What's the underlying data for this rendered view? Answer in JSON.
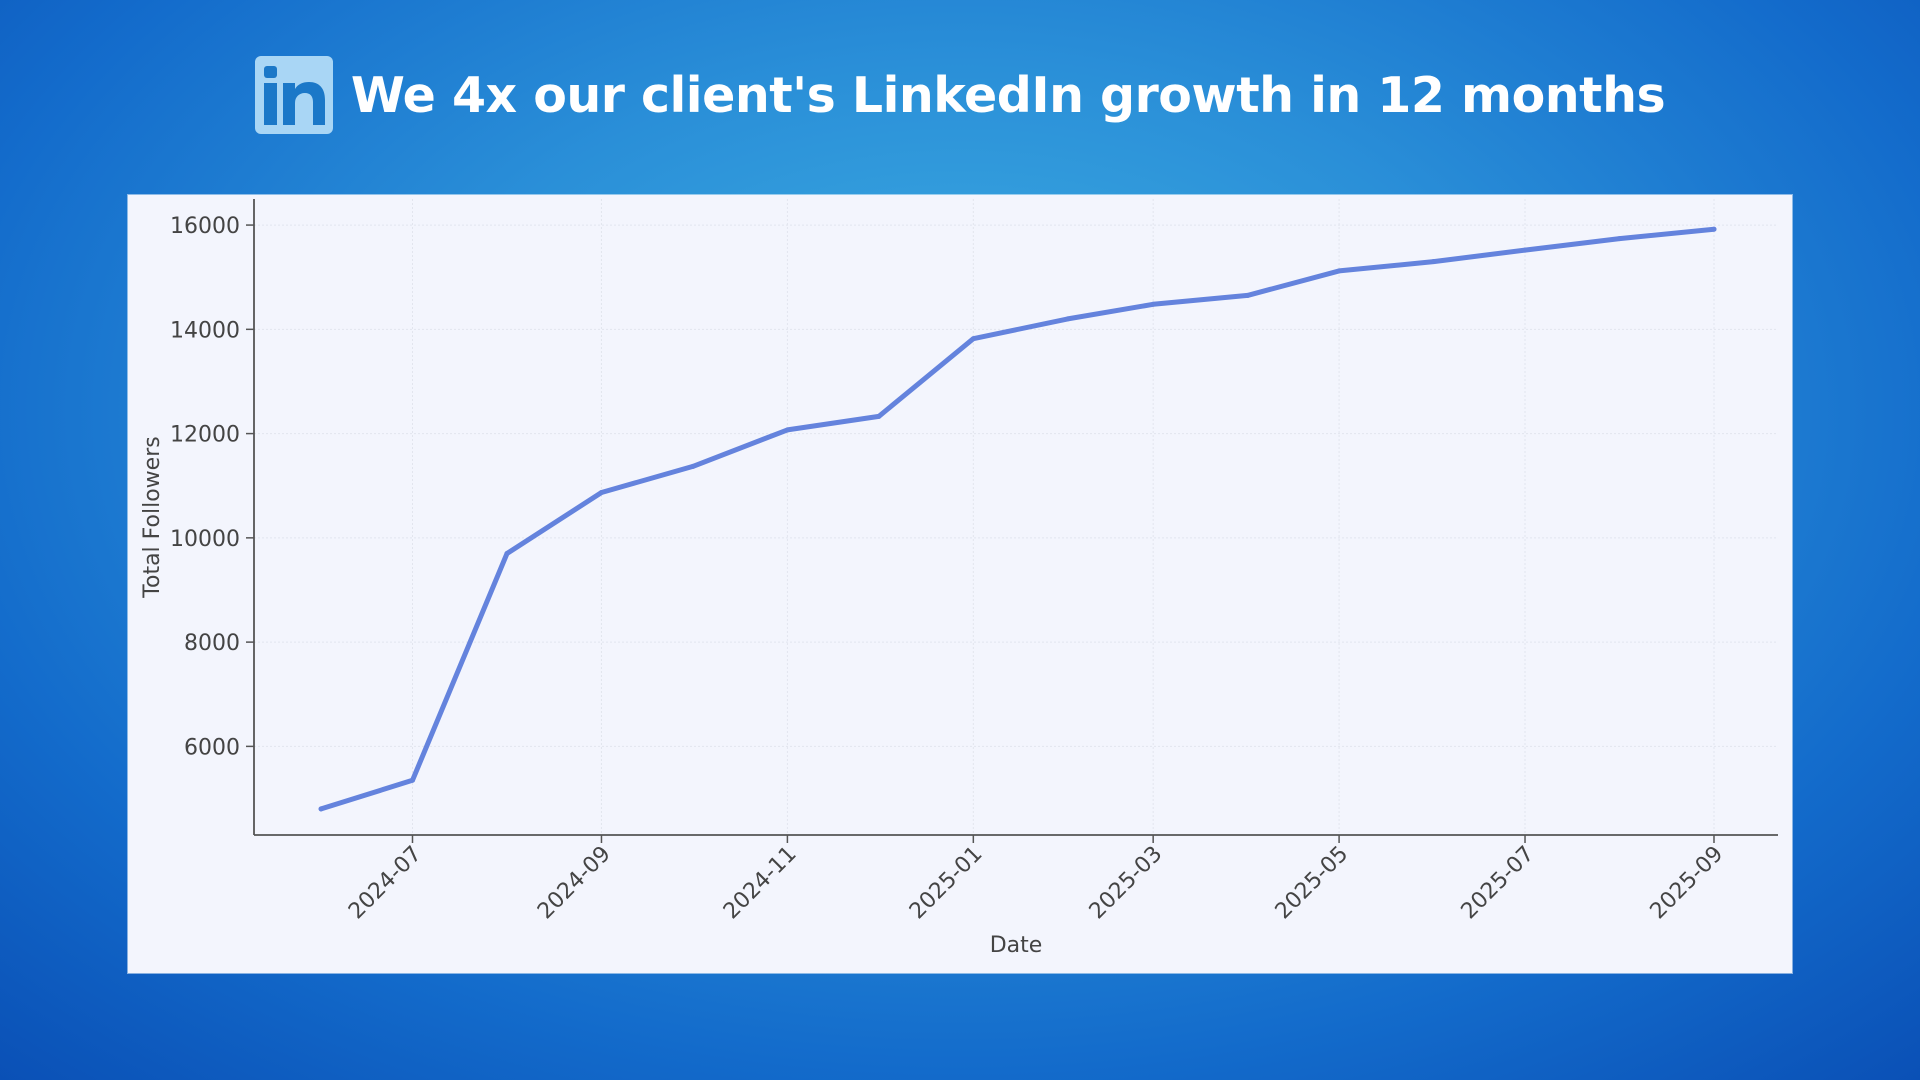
{
  "header": {
    "icon": "linkedin-icon",
    "title": "We 4x our client's LinkedIn growth in 12 months"
  },
  "colors": {
    "line": "#6483dd",
    "plot_background": "#f3f5fd",
    "grid": "#e2e5ee",
    "axis": "#555555",
    "logo": "#a9d6f5"
  },
  "chart_data": {
    "type": "line",
    "title": "",
    "xlabel": "Date",
    "ylabel": "Total Followers",
    "x_tick_labels": [
      "2024-07",
      "2024-09",
      "2024-11",
      "2025-01",
      "2025-03",
      "2025-05",
      "2025-07",
      "2025-09"
    ],
    "y_tick_labels": [
      "6000",
      "8000",
      "10000",
      "12000",
      "14000",
      "16000"
    ],
    "ylim": [
      4300,
      16500
    ],
    "xlim": [
      "2024-05-10",
      "2025-09-22"
    ],
    "grid": true,
    "legend": "none",
    "series": [
      {
        "x": [
          "2024-06-01",
          "2024-07-01",
          "2024-08-01",
          "2024-09-01",
          "2024-10-01",
          "2024-11-01",
          "2024-12-01",
          "2025-01-01",
          "2025-02-01",
          "2025-03-01",
          "2025-04-01",
          "2025-05-01",
          "2025-06-01",
          "2025-07-01",
          "2025-08-01",
          "2025-09-01"
        ],
        "values": [
          4800,
          5350,
          9700,
          10870,
          11370,
          12070,
          12330,
          13820,
          14200,
          14480,
          14650,
          15120,
          15300,
          15520,
          15740,
          15920
        ]
      }
    ]
  }
}
